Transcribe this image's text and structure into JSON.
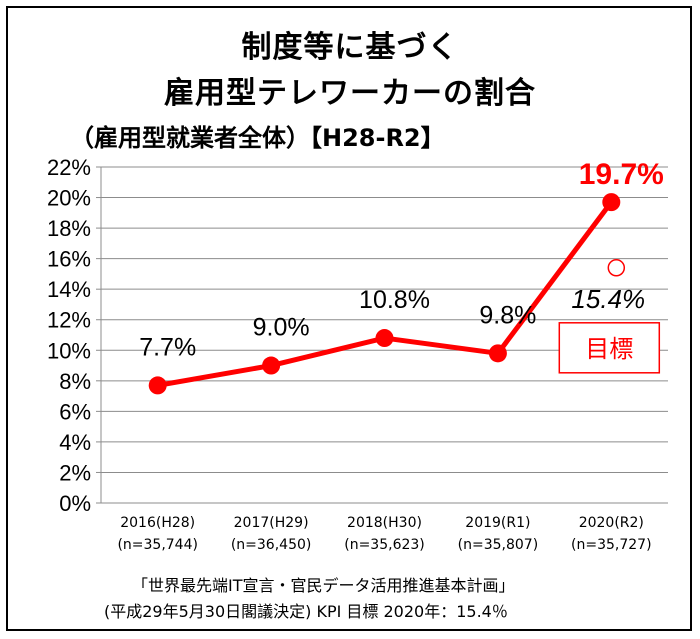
{
  "title_line1": "制度等に基づく",
  "title_line2": "雇用型テレワーカーの割合",
  "subtitle": "（雇用型就業者全体）【H28-R2】",
  "footer_line1": "「世界最先端IT宣言・官民データ活用推進基本計画」",
  "footer_line2": "(平成29年5月30日閣議決定)  KPI  目標   2020年：15.4％",
  "chart_data": {
    "type": "line",
    "categories": [
      "2016(H28)",
      "2017(H29)",
      "2018(H30)",
      "2019(R1)",
      "2020(R2)"
    ],
    "category_sublabels": [
      "(n=35,744)",
      "(n=36,450)",
      "(n=35,623)",
      "(n=35,807)",
      "(n=35,727)"
    ],
    "series": [
      {
        "values": [
          7.7,
          9.0,
          10.8,
          9.8,
          19.7
        ],
        "color": "#ff0000"
      }
    ],
    "data_labels": [
      "7.7%",
      "9.0%",
      "10.8%",
      "9.8%",
      "19.7%"
    ],
    "target": {
      "category": "2020(R2)",
      "value": 15.4,
      "label": "15.4%",
      "badge": "目標",
      "color": "#ff0000"
    },
    "y_ticks": [
      "0%",
      "2%",
      "4%",
      "6%",
      "8%",
      "10%",
      "12%",
      "14%",
      "16%",
      "18%",
      "20%",
      "22%"
    ],
    "ylim": [
      0,
      22
    ],
    "ytick_step": 2,
    "grid": true,
    "xlabel": "",
    "ylabel": ""
  }
}
